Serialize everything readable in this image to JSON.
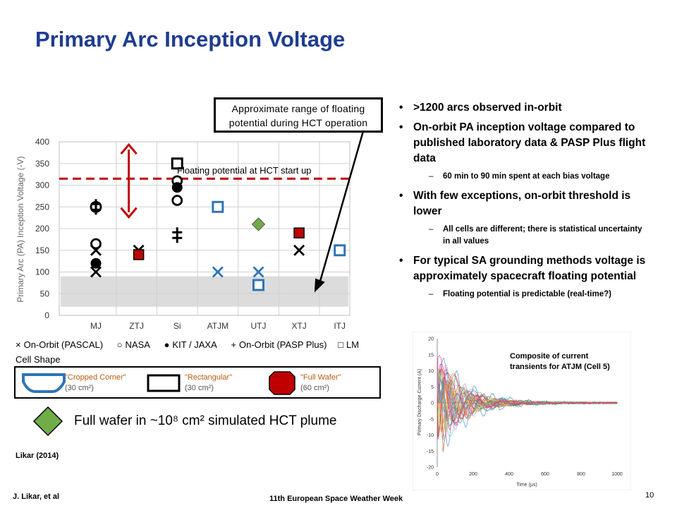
{
  "title": "Primary Arc Inception Voltage",
  "callout": {
    "line1": "Approximate range of floating",
    "line2": "potential during HCT operation"
  },
  "bullets": [
    {
      "level": 1,
      "text": ">1200 arcs observed in-orbit"
    },
    {
      "level": 1,
      "text": "On-orbit PA inception voltage compared to published laboratory data & PASP Plus flight data"
    },
    {
      "level": 2,
      "text": "60 min to 90 min spent at each bias voltage"
    },
    {
      "level": 1,
      "text": "With few exceptions, on-orbit threshold is lower"
    },
    {
      "level": 2,
      "text": "All cells are different; there is statistical uncertainty in all values"
    },
    {
      "level": 1,
      "text": "For typical SA grounding methods voltage is approximately spacecraft floating potential"
    },
    {
      "level": 2,
      "text": "Floating potential is predictable (real-time?)"
    }
  ],
  "legend": {
    "items": [
      {
        "symbol": "×",
        "label": "On-Orbit (PASCAL)"
      },
      {
        "symbol": "○",
        "label": "NASA"
      },
      {
        "symbol": "●",
        "label": "KIT / JAXA"
      },
      {
        "symbol": "+",
        "label": "On-Orbit (PASP Plus)"
      },
      {
        "symbol": "□",
        "label": "LM"
      }
    ],
    "cell_shape_title": "Cell Shape",
    "shapes": [
      {
        "name": "\"Cropped Corner\"",
        "area": "(30 cm²)",
        "color": "#2e75b6"
      },
      {
        "name": "\"Rectangular\"",
        "area": "(30 cm²)",
        "color": "#000000"
      },
      {
        "name": "\"Full Wafer\"",
        "area": "(60 cm²)",
        "color": "#c00000"
      }
    ],
    "hct_label": "Full wafer in ~10⁸ cm² simulated HCT plume"
  },
  "citation": "Likar (2014)",
  "footer": {
    "author": "J. Likar, et al",
    "conference": "11th European Space Weather Week",
    "page": "10"
  },
  "inset": {
    "label_line1": "Composite of current",
    "label_line2": "transients for ATJM (Cell 5)"
  },
  "colors": {
    "title": "#1f3d8f",
    "blue": "#2e75b6",
    "red": "#c00000",
    "green": "#70ad47",
    "dashed": "#c00000"
  },
  "chart_data": [
    {
      "type": "scatter",
      "ylabel": "Primary Arc (PA) Inception Voltage (-V)",
      "xlabel": "",
      "categories": [
        "MJ",
        "ZTJ",
        "Si",
        "ATJM",
        "UTJ",
        "XTJ",
        "ITJ"
      ],
      "ylim": [
        0,
        400
      ],
      "yticks": [
        0,
        50,
        100,
        150,
        200,
        250,
        300,
        350,
        400
      ],
      "grid": true,
      "reference_line": {
        "value": 315,
        "label": "Floating potential at HCT start up"
      },
      "shaded_range": [
        20,
        90
      ],
      "series": [
        {
          "name": "On-Orbit (PASCAL)",
          "marker": "x",
          "color": "#000000",
          "points": [
            [
              "MJ",
              100
            ],
            [
              "MJ",
              150
            ],
            [
              "ZTJ",
              150
            ],
            [
              "XTJ",
              150
            ]
          ]
        },
        {
          "name": "On-Orbit (PASCAL)",
          "marker": "x",
          "color": "#2e75b6",
          "points": [
            [
              "ATJM",
              100
            ],
            [
              "UTJ",
              100
            ]
          ]
        },
        {
          "name": "NASA",
          "marker": "circle-open",
          "color": "#000000",
          "points": [
            [
              "MJ",
              165
            ],
            [
              "Si",
              265
            ],
            [
              "Si",
              310
            ]
          ]
        },
        {
          "name": "KIT / JAXA",
          "marker": "circle-filled",
          "color": "#000000",
          "points": [
            [
              "MJ",
              120
            ],
            [
              "Si",
              295
            ]
          ]
        },
        {
          "name": "On-Orbit (PASP Plus)",
          "marker": "plus",
          "color": "#000000",
          "points": [
            [
              "MJ",
              250
            ],
            [
              "Si",
              185
            ]
          ]
        },
        {
          "name": "LM",
          "marker": "square-open",
          "color": "#000000",
          "points": [
            [
              "Si",
              350
            ]
          ]
        },
        {
          "name": "LM",
          "marker": "square-open",
          "color": "#2e75b6",
          "points": [
            [
              "ATJM",
              250
            ],
            [
              "UTJ",
              70
            ],
            [
              "ITJ",
              150
            ]
          ]
        },
        {
          "name": "LM",
          "marker": "square-filled",
          "color": "#c00000",
          "points": [
            [
              "ZTJ",
              140
            ],
            [
              "XTJ",
              190
            ]
          ]
        },
        {
          "name": "HCT",
          "marker": "diamond",
          "color": "#70ad47",
          "points": [
            [
              "UTJ",
              210
            ]
          ]
        }
      ]
    },
    {
      "type": "line",
      "title": "Composite of current transients for ATJM (Cell 5)",
      "xlabel": "Time (µs)",
      "ylabel": "Primary Discharge Current (A)",
      "xlim": [
        0,
        1000
      ],
      "ylim": [
        -20,
        20
      ],
      "xticks": [
        0,
        200,
        400,
        600,
        800,
        1000
      ],
      "yticks": [
        -20,
        -15,
        -10,
        -5,
        0,
        5,
        10,
        15,
        20
      ]
    }
  ]
}
